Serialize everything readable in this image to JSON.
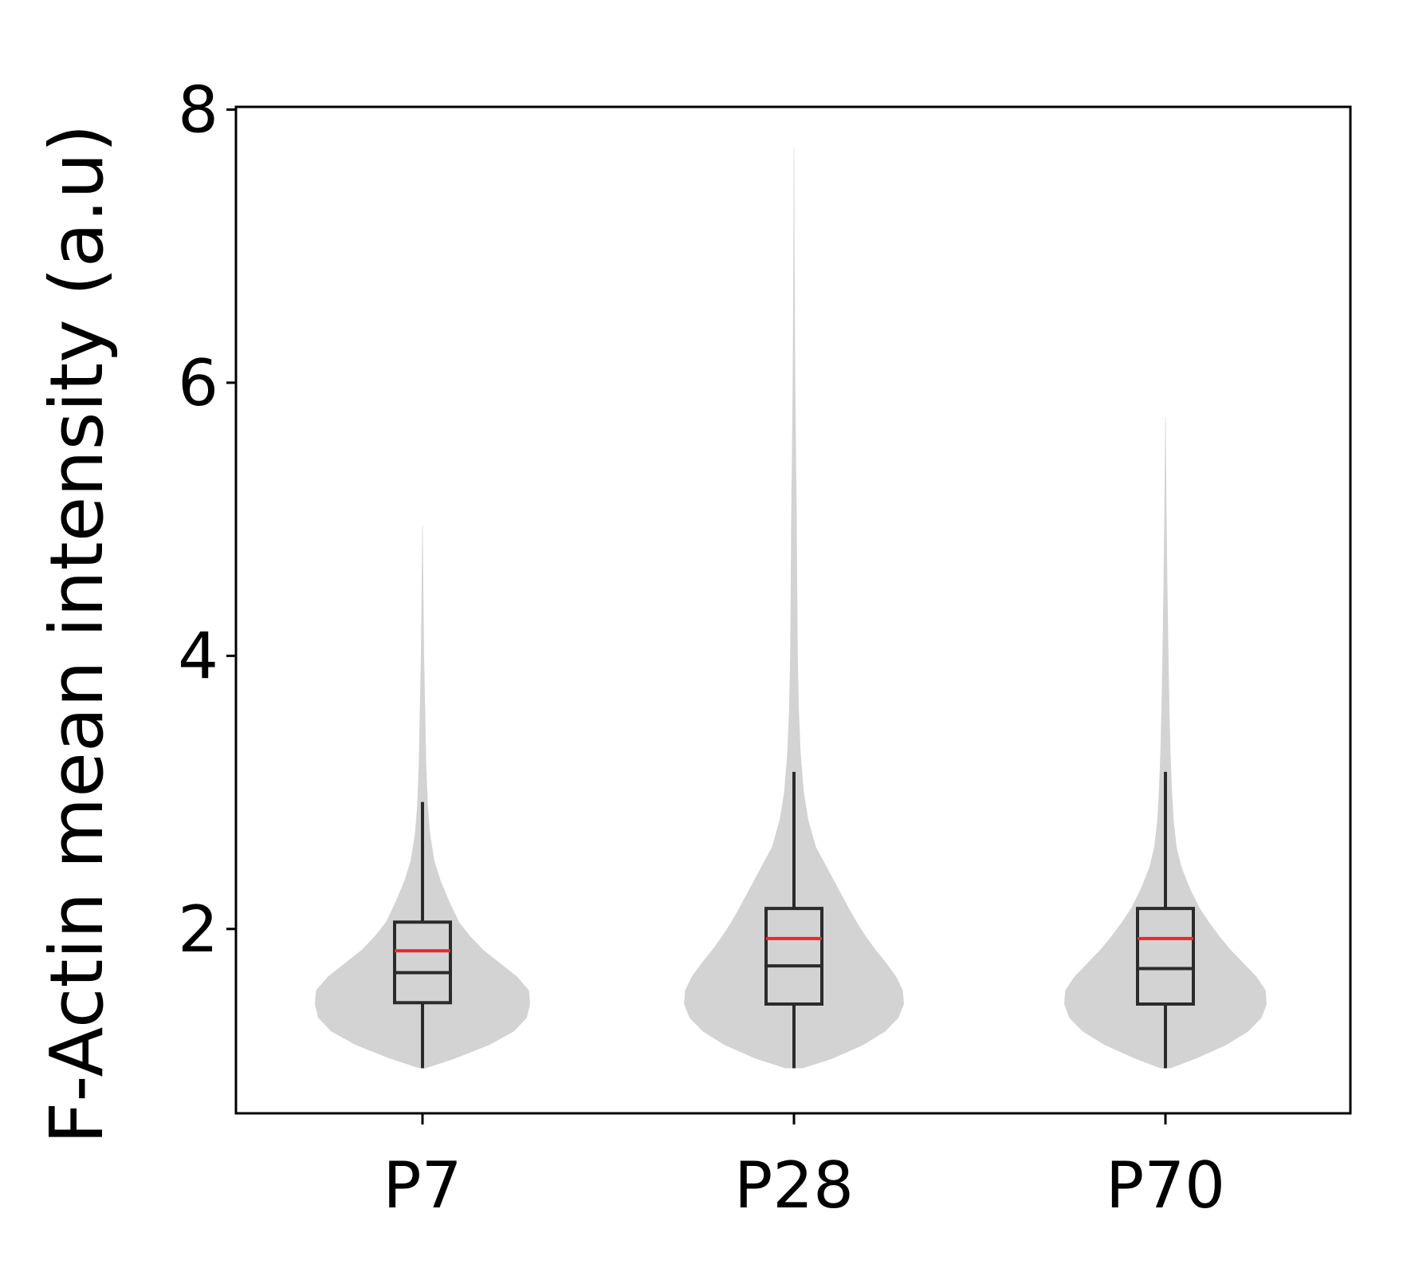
{
  "chart_data": {
    "type": "violin",
    "title": "",
    "xlabel": "",
    "ylabel": "F-Actin mean intensity (a.u)",
    "categories": [
      "P7",
      "P28",
      "P70"
    ],
    "ylim": [
      0.65,
      8.02
    ],
    "yticks": [
      2,
      4,
      6,
      8
    ],
    "grid": false,
    "legend": "none",
    "colors": {
      "violin": "#d3d3d3",
      "box": "#2b2b2b",
      "median": "#2b2b2b",
      "mean": "#e8282b"
    },
    "groups": [
      {
        "name": "P7",
        "whisker_low": 0.98,
        "q1": 1.46,
        "median": 1.68,
        "mean": 1.84,
        "q3": 2.05,
        "whisker_high": 2.93,
        "min": 0.98,
        "max": 4.95,
        "density": [
          [
            0.98,
            0.03
          ],
          [
            1.05,
            0.3
          ],
          [
            1.15,
            0.62
          ],
          [
            1.25,
            0.85
          ],
          [
            1.35,
            0.97
          ],
          [
            1.45,
            1.0
          ],
          [
            1.55,
            0.99
          ],
          [
            1.65,
            0.88
          ],
          [
            1.75,
            0.72
          ],
          [
            1.85,
            0.56
          ],
          [
            1.95,
            0.44
          ],
          [
            2.05,
            0.34
          ],
          [
            2.2,
            0.25
          ],
          [
            2.35,
            0.17
          ],
          [
            2.5,
            0.11
          ],
          [
            2.7,
            0.07
          ],
          [
            2.9,
            0.05
          ],
          [
            3.2,
            0.035
          ],
          [
            3.6,
            0.025
          ],
          [
            4.0,
            0.015
          ],
          [
            4.5,
            0.008
          ],
          [
            4.95,
            0.002
          ]
        ]
      },
      {
        "name": "P28",
        "whisker_low": 0.98,
        "q1": 1.45,
        "median": 1.73,
        "mean": 1.93,
        "q3": 2.15,
        "whisker_high": 3.15,
        "min": 0.98,
        "max": 7.72,
        "density": [
          [
            0.98,
            0.08
          ],
          [
            1.05,
            0.35
          ],
          [
            1.15,
            0.63
          ],
          [
            1.25,
            0.83
          ],
          [
            1.35,
            0.95
          ],
          [
            1.45,
            1.0
          ],
          [
            1.55,
            0.99
          ],
          [
            1.65,
            0.93
          ],
          [
            1.75,
            0.84
          ],
          [
            1.85,
            0.74
          ],
          [
            1.95,
            0.65
          ],
          [
            2.05,
            0.57
          ],
          [
            2.15,
            0.5
          ],
          [
            2.3,
            0.4
          ],
          [
            2.45,
            0.3
          ],
          [
            2.6,
            0.2
          ],
          [
            2.8,
            0.13
          ],
          [
            3.0,
            0.09
          ],
          [
            3.3,
            0.06
          ],
          [
            3.6,
            0.045
          ],
          [
            4.0,
            0.035
          ],
          [
            4.5,
            0.03
          ],
          [
            5.0,
            0.025
          ],
          [
            5.5,
            0.018
          ],
          [
            6.0,
            0.012
          ],
          [
            6.5,
            0.008
          ],
          [
            7.0,
            0.005
          ],
          [
            7.72,
            0.002
          ]
        ]
      },
      {
        "name": "P70",
        "whisker_low": 0.98,
        "q1": 1.45,
        "median": 1.71,
        "mean": 1.93,
        "q3": 2.15,
        "whisker_high": 3.15,
        "min": 0.98,
        "max": 5.75,
        "density": [
          [
            0.98,
            0.05
          ],
          [
            1.05,
            0.3
          ],
          [
            1.15,
            0.6
          ],
          [
            1.25,
            0.82
          ],
          [
            1.35,
            0.95
          ],
          [
            1.45,
            1.0
          ],
          [
            1.55,
            0.99
          ],
          [
            1.65,
            0.9
          ],
          [
            1.75,
            0.77
          ],
          [
            1.85,
            0.64
          ],
          [
            1.95,
            0.53
          ],
          [
            2.05,
            0.43
          ],
          [
            2.15,
            0.34
          ],
          [
            2.3,
            0.24
          ],
          [
            2.45,
            0.16
          ],
          [
            2.6,
            0.11
          ],
          [
            2.8,
            0.08
          ],
          [
            3.0,
            0.065
          ],
          [
            3.3,
            0.05
          ],
          [
            3.6,
            0.04
          ],
          [
            4.0,
            0.03
          ],
          [
            4.5,
            0.02
          ],
          [
            5.0,
            0.012
          ],
          [
            5.4,
            0.006
          ],
          [
            5.75,
            0.002
          ]
        ]
      }
    ]
  }
}
